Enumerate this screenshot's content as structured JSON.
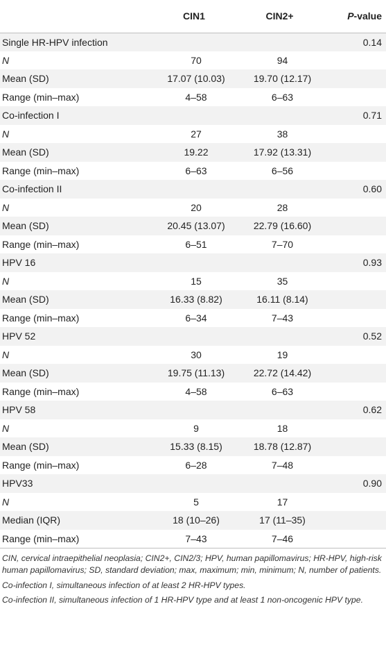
{
  "header": {
    "col1": "CIN1",
    "col2": "CIN2+",
    "pvalue_p": "P",
    "pvalue_rest": "-value"
  },
  "groups": [
    {
      "name": "Single HR-HPV infection",
      "pvalue": "0.14",
      "rows": [
        {
          "label": "N",
          "italic": true,
          "cin1": "70",
          "cin2": "94"
        },
        {
          "label": "Mean (SD)",
          "cin1": "17.07 (10.03)",
          "cin2": "19.70 (12.17)"
        },
        {
          "label": "Range (min–max)",
          "cin1": "4–58",
          "cin2": "6–63"
        }
      ]
    },
    {
      "name": "Co-infection I",
      "pvalue": "0.71",
      "rows": [
        {
          "label": "N",
          "italic": true,
          "cin1": "27",
          "cin2": "38"
        },
        {
          "label": "Mean (SD)",
          "cin1": "19.22",
          "cin2": "17.92 (13.31)"
        },
        {
          "label": "Range (min–max)",
          "cin1": "6–63",
          "cin2": "6–56"
        }
      ]
    },
    {
      "name": "Co-infection II",
      "pvalue": "0.60",
      "rows": [
        {
          "label": "N",
          "italic": true,
          "cin1": "20",
          "cin2": "28"
        },
        {
          "label": "Mean (SD)",
          "cin1": "20.45 (13.07)",
          "cin2": "22.79 (16.60)"
        },
        {
          "label": "Range (min–max)",
          "cin1": "6–51",
          "cin2": "7–70"
        }
      ]
    },
    {
      "name": "HPV 16",
      "pvalue": "0.93",
      "rows": [
        {
          "label": "N",
          "italic": true,
          "cin1": "15",
          "cin2": "35"
        },
        {
          "label": "Mean (SD)",
          "cin1": "16.33 (8.82)",
          "cin2": "16.11 (8.14)"
        },
        {
          "label": "Range (min–max)",
          "cin1": "6–34",
          "cin2": "7–43"
        }
      ]
    },
    {
      "name": "HPV 52",
      "pvalue": "0.52",
      "rows": [
        {
          "label": "N",
          "italic": true,
          "cin1": "30",
          "cin2": "19"
        },
        {
          "label": "Mean (SD)",
          "cin1": "19.75 (11.13)",
          "cin2": "22.72 (14.42)"
        },
        {
          "label": "Range (min–max)",
          "cin1": "4–58",
          "cin2": "6–63"
        }
      ]
    },
    {
      "name": "HPV 58",
      "pvalue": "0.62",
      "rows": [
        {
          "label": "N",
          "italic": true,
          "cin1": "9",
          "cin2": "18"
        },
        {
          "label": "Mean (SD)",
          "cin1": "15.33 (8.15)",
          "cin2": "18.78 (12.87)"
        },
        {
          "label": "Range (min–max)",
          "cin1": "6–28",
          "cin2": "7–48"
        }
      ]
    },
    {
      "name": "HPV33",
      "pvalue": "0.90",
      "rows": [
        {
          "label": "N",
          "italic": true,
          "cin1": "5",
          "cin2": "17"
        },
        {
          "label": "Median (IQR)",
          "cin1": "18 (10–26)",
          "cin2": "17 (11–35)"
        },
        {
          "label": "Range (min–max)",
          "cin1": "7–43",
          "cin2": "7–46"
        }
      ]
    }
  ],
  "footnotes": [
    "CIN, cervical intraepithelial neoplasia; CIN2+, CIN2/3; HPV, human papillomavirus; HR-HPV, high-risk human papillomavirus; SD, standard deviation; max, maximum; min, minimum; N, number of patients.",
    "Co-infection I, simultaneous infection of at least 2 HR-HPV types.",
    "Co-infection II, simultaneous infection of 1 HR-HPV type and at least 1 non-oncogenic HPV type."
  ]
}
